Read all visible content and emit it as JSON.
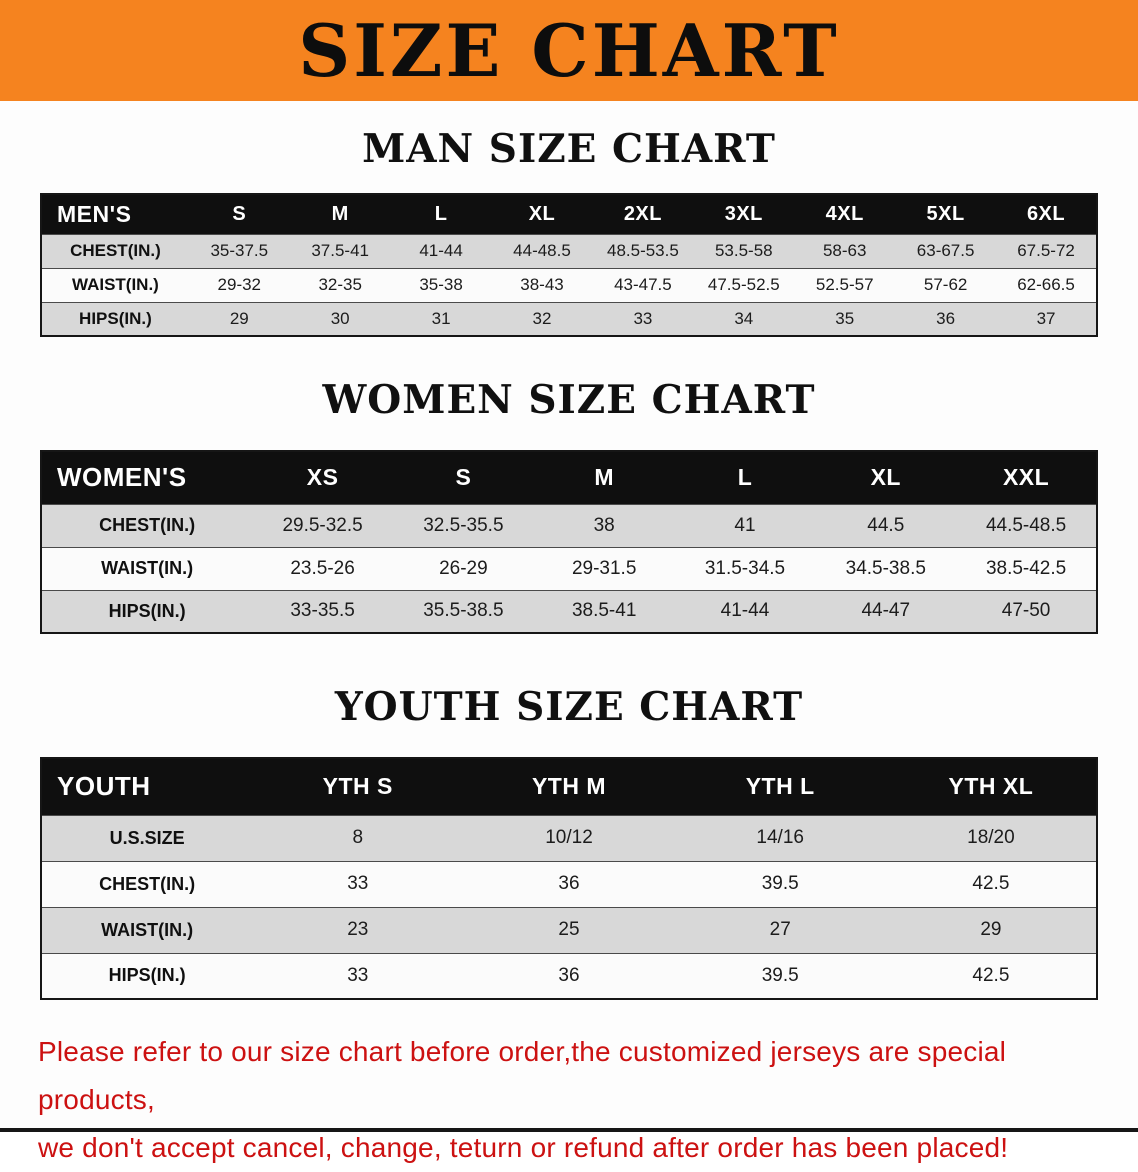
{
  "banner": {
    "title": "SIZE CHART",
    "background_color": "#F5831F",
    "text_color": "#0D0D0D"
  },
  "sections": [
    {
      "name": "men-size-chart",
      "heading": "MAN SIZE CHART",
      "table": {
        "header": [
          "MEN'S",
          "S",
          "M",
          "L",
          "XL",
          "2XL",
          "3XL",
          "4XL",
          "5XL",
          "6XL"
        ],
        "rows": [
          {
            "label": "CHEST(IN.)",
            "values": [
              "35-37.5",
              "37.5-41",
              "41-44",
              "44-48.5",
              "48.5-53.5",
              "53.5-58",
              "58-63",
              "63-67.5",
              "67.5-72"
            ]
          },
          {
            "label": "WAIST(IN.)",
            "values": [
              "29-32",
              "32-35",
              "35-38",
              "38-43",
              "43-47.5",
              "47.5-52.5",
              "52.5-57",
              "57-62",
              "62-66.5"
            ]
          },
          {
            "label": "HIPS(IN.)",
            "values": [
              "29",
              "30",
              "31",
              "32",
              "33",
              "34",
              "35",
              "36",
              "37"
            ]
          }
        ]
      }
    },
    {
      "name": "women-size-chart",
      "heading": "WOMEN SIZE CHART",
      "table": {
        "header": [
          "WOMEN'S",
          "XS",
          "S",
          "M",
          "L",
          "XL",
          "XXL"
        ],
        "rows": [
          {
            "label": "CHEST(IN.)",
            "values": [
              "29.5-32.5",
              "32.5-35.5",
              "38",
              "41",
              "44.5",
              "44.5-48.5"
            ]
          },
          {
            "label": "WAIST(IN.)",
            "values": [
              "23.5-26",
              "26-29",
              "29-31.5",
              "31.5-34.5",
              "34.5-38.5",
              "38.5-42.5"
            ]
          },
          {
            "label": "HIPS(IN.)",
            "values": [
              "33-35.5",
              "35.5-38.5",
              "38.5-41",
              "41-44",
              "44-47",
              "47-50"
            ]
          }
        ]
      }
    },
    {
      "name": "youth-size-chart",
      "heading": "YOUTH SIZE CHART",
      "table": {
        "header": [
          "YOUTH",
          "YTH S",
          "YTH M",
          "YTH L",
          "YTH XL"
        ],
        "rows": [
          {
            "label": "U.S.SIZE",
            "values": [
              "8",
              "10/12",
              "14/16",
              "18/20"
            ]
          },
          {
            "label": "CHEST(IN.)",
            "values": [
              "33",
              "36",
              "39.5",
              "42.5"
            ]
          },
          {
            "label": "WAIST(IN.)",
            "values": [
              "23",
              "25",
              "27",
              "29"
            ]
          },
          {
            "label": "HIPS(IN.)",
            "values": [
              "33",
              "36",
              "39.5",
              "42.5"
            ]
          }
        ]
      }
    }
  ],
  "disclaimer": {
    "line1": "Please refer to our size chart before order,the customized jerseys are special products,",
    "line2": "we don't accept cancel, change, teturn or refund after order has been placed!",
    "text_color": "#CC1111"
  }
}
